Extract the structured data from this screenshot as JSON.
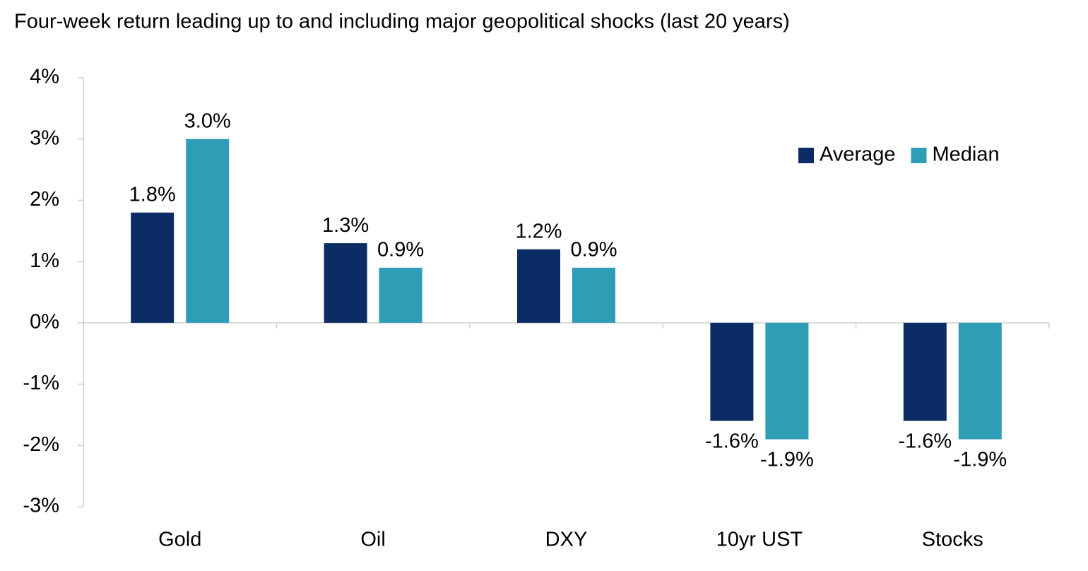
{
  "chart_data": {
    "type": "bar",
    "title": "Four-week return leading up to and including major geopolitical shocks (last 20 years)",
    "categories": [
      "Gold",
      "Oil",
      "DXY",
      "10yr UST",
      "Stocks"
    ],
    "series": [
      {
        "name": "Average",
        "color": "#0b2c65",
        "values": [
          1.8,
          1.3,
          1.2,
          -1.6,
          -1.6
        ],
        "value_labels": [
          "1.8%",
          "1.3%",
          "1.2%",
          "-1.6%",
          "-1.6%"
        ]
      },
      {
        "name": "Median",
        "color": "#2f9db5",
        "values": [
          3.0,
          0.9,
          0.9,
          -1.9,
          -1.9
        ],
        "value_labels": [
          "3.0%",
          "0.9%",
          "0.9%",
          "-1.9%",
          "-1.9%"
        ]
      }
    ],
    "ylim": [
      -3,
      4
    ],
    "yticks": [
      {
        "value": -3,
        "label": "-3%"
      },
      {
        "value": -2,
        "label": "-2%"
      },
      {
        "value": -1,
        "label": "-1%"
      },
      {
        "value": 0,
        "label": "0%"
      },
      {
        "value": 1,
        "label": "1%"
      },
      {
        "value": 2,
        "label": "2%"
      },
      {
        "value": 3,
        "label": "3%"
      },
      {
        "value": 4,
        "label": "4%"
      }
    ],
    "legend": "upper right"
  }
}
